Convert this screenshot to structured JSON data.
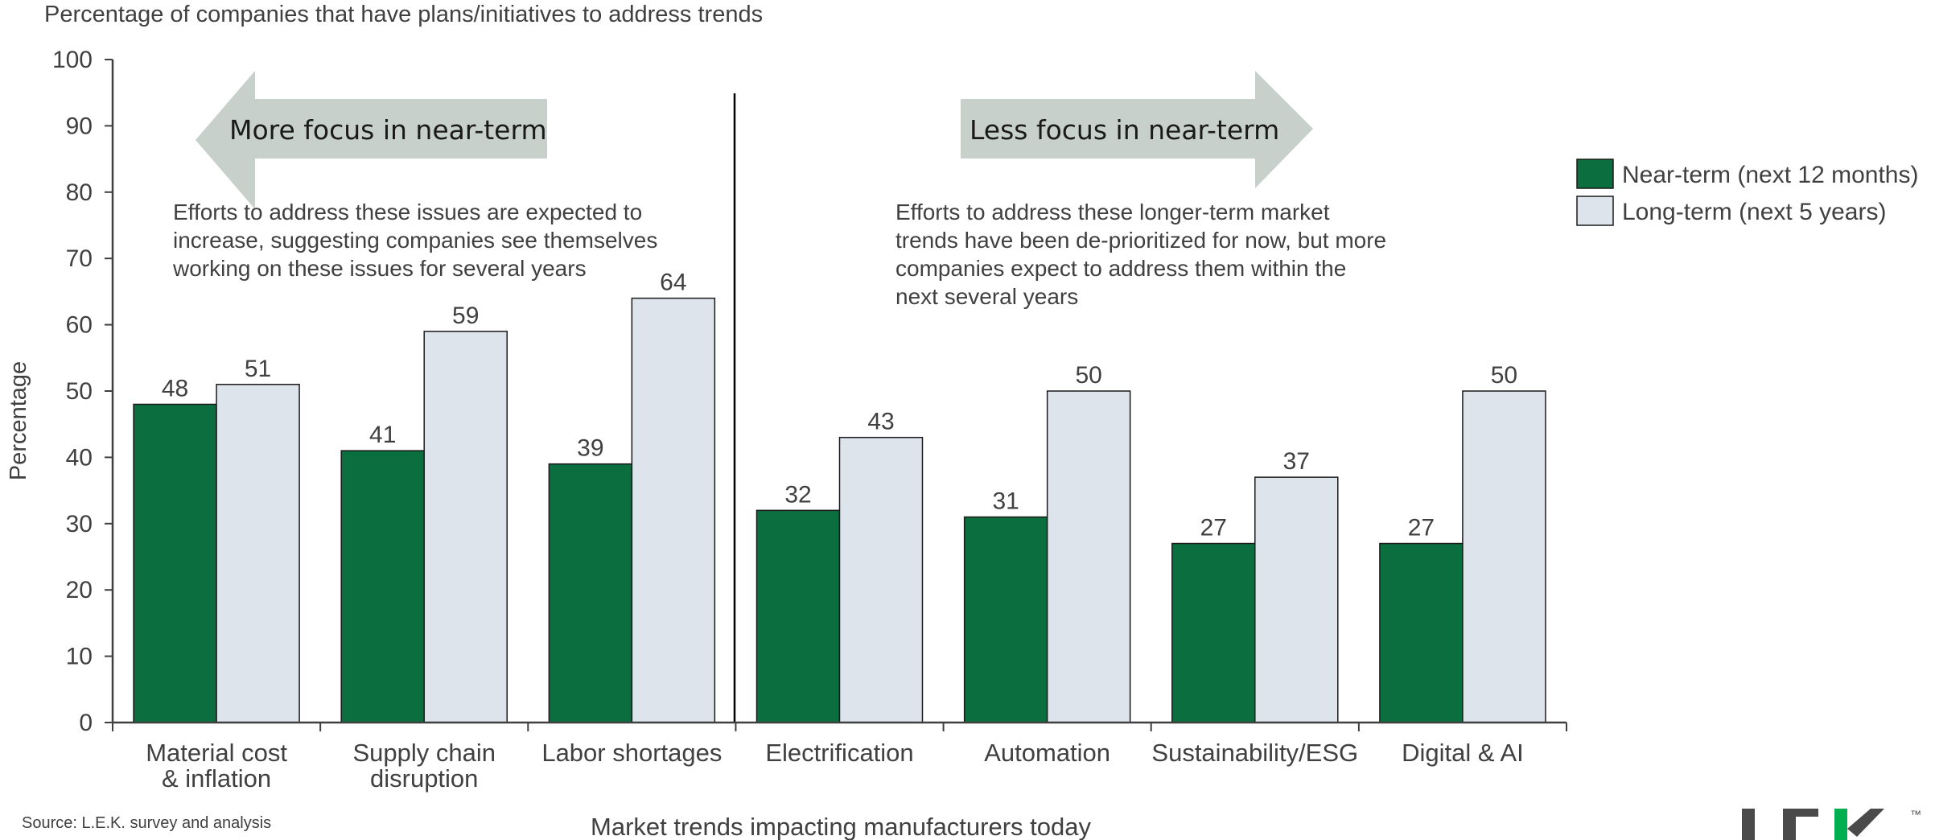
{
  "chart_data": {
    "type": "bar",
    "title": "Percentage of companies that have plans/initiatives to address trends",
    "xlabel": "Market trends impacting manufacturers today",
    "ylabel": "Percentage",
    "ylim": [
      0,
      100
    ],
    "yticks": [
      0,
      10,
      20,
      30,
      40,
      50,
      60,
      70,
      80,
      90,
      100
    ],
    "grid": false,
    "legend_position": "top-right",
    "categories": [
      [
        "Material cost",
        "& inflation"
      ],
      [
        "Supply chain",
        "disruption"
      ],
      [
        "Labor shortages"
      ],
      [
        "Electrification"
      ],
      [
        "Automation"
      ],
      [
        "Sustainability/ESG"
      ],
      [
        "Digital & AI"
      ]
    ],
    "series": [
      {
        "name": "Near-term (next 12 months)",
        "color": "#0b6e3f",
        "values": [
          48,
          41,
          39,
          32,
          31,
          27,
          27
        ]
      },
      {
        "name": "Long-term (next 5 years)",
        "color": "#dde4ec",
        "values": [
          51,
          59,
          64,
          43,
          50,
          37,
          50
        ]
      }
    ],
    "divider_after_category": 2,
    "annotations": {
      "left_arrow": "More focus in near-term",
      "right_arrow": "Less focus in near-term",
      "left_note": [
        "Efforts to address these issues are expected to",
        "increase, suggesting companies see themselves",
        "working on these issues for several years"
      ],
      "right_note": [
        "Efforts to address these longer-term market",
        "trends have been de-prioritized for now, but more",
        "companies expect to address them within the",
        "next several years"
      ]
    }
  },
  "source": "Source: L.E.K. survey and analysis",
  "logo": {
    "text": "L.E.K.",
    "tm": "™",
    "accent": "#00b050"
  }
}
